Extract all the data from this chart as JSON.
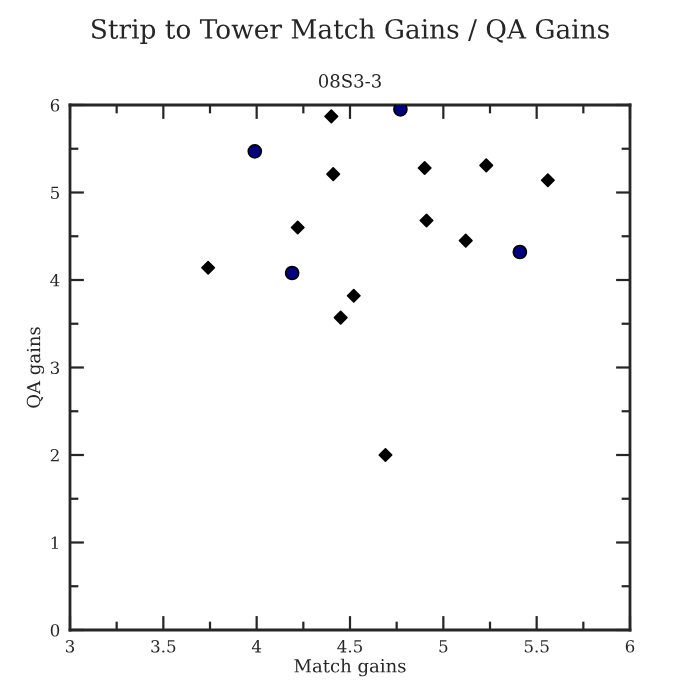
{
  "chart_data": {
    "type": "scatter",
    "title": "Strip to Tower Match Gains / QA Gains",
    "subtitle": "08S3-3",
    "xlabel": "Match gains",
    "ylabel": "QA gains",
    "xlim": [
      3,
      6
    ],
    "ylim": [
      0,
      6
    ],
    "xticks": [
      3,
      3.5,
      4,
      4.5,
      5,
      5.5,
      6
    ],
    "yticks": [
      0,
      1,
      2,
      3,
      4,
      5,
      6
    ],
    "grid": false,
    "legend": false,
    "series": [
      {
        "color": "#000000",
        "marker": "diamond",
        "x": [
          3.74,
          4.22,
          4.4,
          4.41,
          4.45,
          4.52,
          4.69,
          4.9,
          4.91,
          5.12,
          5.23,
          5.56
        ],
        "values": [
          4.14,
          4.6,
          5.87,
          5.21,
          3.57,
          3.82,
          2.0,
          5.28,
          4.68,
          4.45,
          5.31,
          5.14
        ]
      },
      {
        "color": "#000080",
        "marker": "circle",
        "x": [
          3.99,
          4.19,
          4.77,
          5.41
        ],
        "values": [
          5.47,
          4.08,
          5.95,
          4.32
        ]
      }
    ]
  }
}
